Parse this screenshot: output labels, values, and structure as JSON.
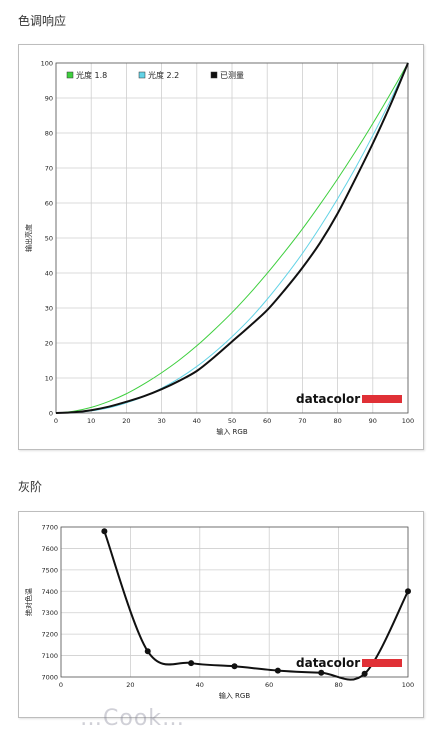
{
  "sections": {
    "tone_title": "色调响应",
    "gray_title": "灰阶"
  },
  "brand": "datacolor",
  "brand_color": "#e03036",
  "watermark": "…Cook…",
  "chart_data": [
    {
      "type": "line",
      "title": "",
      "xlabel": "输入 RGB",
      "ylabel": "输出亮度",
      "xlim": [
        0,
        100
      ],
      "ylim": [
        0,
        100
      ],
      "xticks": [
        0,
        10,
        20,
        30,
        40,
        50,
        60,
        70,
        80,
        90,
        100
      ],
      "yticks": [
        0,
        10,
        20,
        30,
        40,
        50,
        60,
        70,
        80,
        90,
        100
      ],
      "grid": true,
      "legend_position": "top-left",
      "series": [
        {
          "name": "光度 1.8",
          "color": "#3ecf3e",
          "width": 1,
          "x": [
            0,
            5,
            10,
            15,
            20,
            25,
            30,
            35,
            40,
            45,
            50,
            55,
            60,
            65,
            70,
            75,
            80,
            85,
            90,
            95,
            100
          ],
          "y": [
            0,
            0.5,
            1.6,
            3.3,
            5.5,
            8.3,
            11.5,
            15.1,
            19.2,
            23.8,
            28.7,
            34.1,
            39.9,
            46.1,
            52.6,
            59.6,
            66.9,
            74.6,
            82.7,
            91.2,
            100
          ]
        },
        {
          "name": "光度 2.2",
          "color": "#63d3e6",
          "width": 1,
          "x": [
            0,
            5,
            10,
            15,
            20,
            25,
            30,
            35,
            40,
            45,
            50,
            55,
            60,
            65,
            70,
            75,
            80,
            85,
            90,
            95,
            100
          ],
          "y": [
            0,
            0.1,
            0.6,
            1.5,
            2.9,
            4.7,
            7.1,
            9.9,
            13.3,
            17.3,
            21.8,
            26.8,
            32.5,
            38.8,
            45.6,
            53.1,
            61.2,
            69.9,
            79.3,
            89.3,
            100
          ]
        },
        {
          "name": "已测量",
          "color": "#111111",
          "width": 2,
          "x": [
            0,
            5,
            10,
            15,
            20,
            25,
            30,
            35,
            40,
            45,
            50,
            55,
            60,
            65,
            70,
            75,
            80,
            85,
            90,
            95,
            100
          ],
          "y": [
            0,
            0.2,
            0.8,
            1.8,
            3.2,
            4.8,
            6.8,
            9.2,
            12.0,
            16.0,
            20.4,
            24.8,
            29.4,
            35.2,
            41.5,
            48.6,
            57.0,
            66.8,
            77.0,
            88.0,
            100
          ]
        }
      ]
    },
    {
      "type": "line",
      "title": "",
      "xlabel": "输入 RGB",
      "ylabel": "绝对色温",
      "xlim": [
        0,
        100
      ],
      "ylim": [
        7000,
        7700
      ],
      "xticks": [
        0,
        20,
        40,
        60,
        80,
        100
      ],
      "yticks": [
        7000,
        7100,
        7200,
        7300,
        7400,
        7500,
        7600,
        7700
      ],
      "grid": true,
      "series": [
        {
          "color": "#111111",
          "width": 2,
          "x": [
            12.5,
            25,
            37.5,
            50,
            62.5,
            75,
            87.5,
            100
          ],
          "y": [
            7680,
            7120,
            7065,
            7050,
            7030,
            7020,
            7015,
            7400
          ]
        }
      ]
    }
  ]
}
